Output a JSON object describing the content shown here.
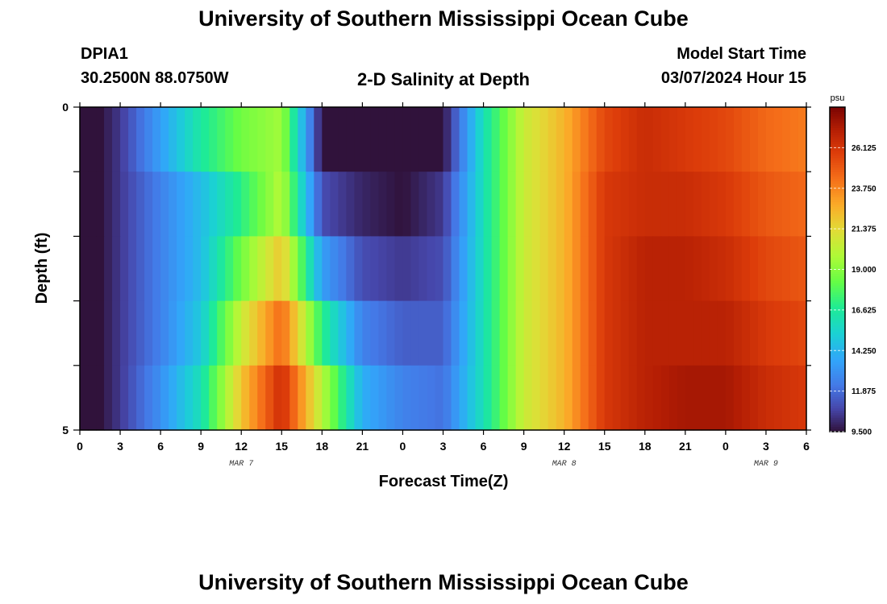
{
  "header": {
    "title": "University of Southern Mississippi Ocean Cube",
    "station": "DPIA1",
    "coords": "30.2500N  88.0750W",
    "subtitle": "2-D Salinity at Depth",
    "model_label": "Model Start Time",
    "model_time": "03/07/2024 Hour 15"
  },
  "footer": {
    "title": "University of Southern Mississippi Ocean Cube"
  },
  "chart_data": {
    "type": "heatmap",
    "title": "2-D Salinity at Depth",
    "xlabel": "Forecast Time(Z)",
    "ylabel": "Depth (ft)",
    "x_tick_labels": [
      "0",
      "3",
      "6",
      "9",
      "12",
      "15",
      "18",
      "21",
      "0",
      "3",
      "6",
      "9",
      "12",
      "15",
      "18",
      "21",
      "0",
      "3",
      "6"
    ],
    "x_date_labels": [
      {
        "label": "MAR 7",
        "tick_index": 4
      },
      {
        "label": "MAR 8",
        "tick_index": 12
      },
      {
        "label": "MAR 9",
        "tick_index": 17
      }
    ],
    "y_tick_labels": [
      "0",
      "5"
    ],
    "ylim": [
      0,
      5
    ],
    "hours": [
      0,
      3,
      6,
      9,
      12,
      15,
      18,
      21,
      24,
      27,
      30,
      33,
      36,
      39,
      42,
      45,
      48,
      51,
      54
    ],
    "depth_rows": [
      0.5,
      1.5,
      2.5,
      3.5,
      4.5
    ],
    "salinity": [
      [
        8.5,
        10.5,
        13.5,
        16.5,
        18.5,
        19.5,
        9.5,
        8.5,
        8.0,
        9.5,
        16.0,
        20.5,
        22.5,
        25.5,
        26.5,
        26.0,
        25.5,
        24.5,
        24.0
      ],
      [
        8.5,
        10.5,
        12.5,
        14.5,
        17.0,
        20.0,
        11.0,
        10.0,
        9.5,
        10.5,
        16.0,
        20.5,
        22.5,
        26.0,
        26.5,
        26.5,
        26.0,
        25.0,
        24.5
      ],
      [
        8.5,
        10.5,
        12.5,
        14.5,
        18.5,
        22.0,
        13.5,
        11.0,
        10.5,
        11.0,
        16.0,
        20.5,
        22.5,
        26.0,
        27.0,
        27.0,
        26.5,
        25.5,
        25.0
      ],
      [
        8.5,
        10.5,
        12.5,
        15.0,
        20.5,
        24.5,
        17.0,
        12.5,
        11.5,
        11.5,
        16.0,
        20.5,
        22.5,
        26.0,
        27.0,
        27.0,
        27.0,
        26.0,
        25.5
      ],
      [
        8.5,
        10.5,
        13.0,
        16.0,
        22.0,
        26.5,
        20.0,
        14.0,
        12.5,
        12.0,
        16.0,
        20.5,
        22.5,
        26.0,
        27.0,
        27.5,
        27.5,
        26.5,
        26.0
      ]
    ],
    "colorbar": {
      "unit": "psu",
      "ticks": [
        "9.500",
        "11.875",
        "14.250",
        "16.625",
        "19.000",
        "21.375",
        "23.750",
        "26.125"
      ],
      "range": [
        9.5,
        28.5
      ]
    }
  }
}
